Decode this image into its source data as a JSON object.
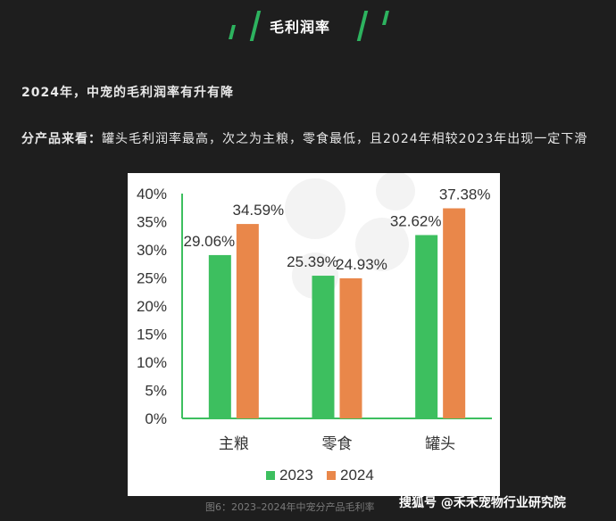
{
  "section_tag": "毛利润率",
  "heading": "2024年，中宠的毛利润率有升有降",
  "body_lead": "分产品来看：",
  "body_text": "罐头毛利润率最高，次之为主粮，零食最低，且2024年相较2023年出现一定下滑",
  "caption": "图6：2023–2024年中宠分产品毛利率",
  "watermark": "搜狐号 @禾禾宠物行业研究院",
  "colors": {
    "series_2023": "#3dbf5f",
    "series_2024": "#e9874a",
    "accent": "#2db35f"
  },
  "chart_data": {
    "type": "bar",
    "categories": [
      "主粮",
      "零食",
      "罐头"
    ],
    "series": [
      {
        "name": "2023",
        "values": [
          29.06,
          25.39,
          32.62
        ],
        "labels": [
          "29.06%",
          "25.39%",
          "32.62%"
        ]
      },
      {
        "name": "2024",
        "values": [
          34.59,
          24.93,
          37.38
        ],
        "labels": [
          "34.59%",
          "24.93%",
          "37.38%"
        ]
      }
    ],
    "ylim": [
      0,
      40
    ],
    "yticks": [
      "0%",
      "5%",
      "10%",
      "15%",
      "20%",
      "25%",
      "30%",
      "35%",
      "40%"
    ],
    "legend_position": "bottom",
    "grid": false
  }
}
